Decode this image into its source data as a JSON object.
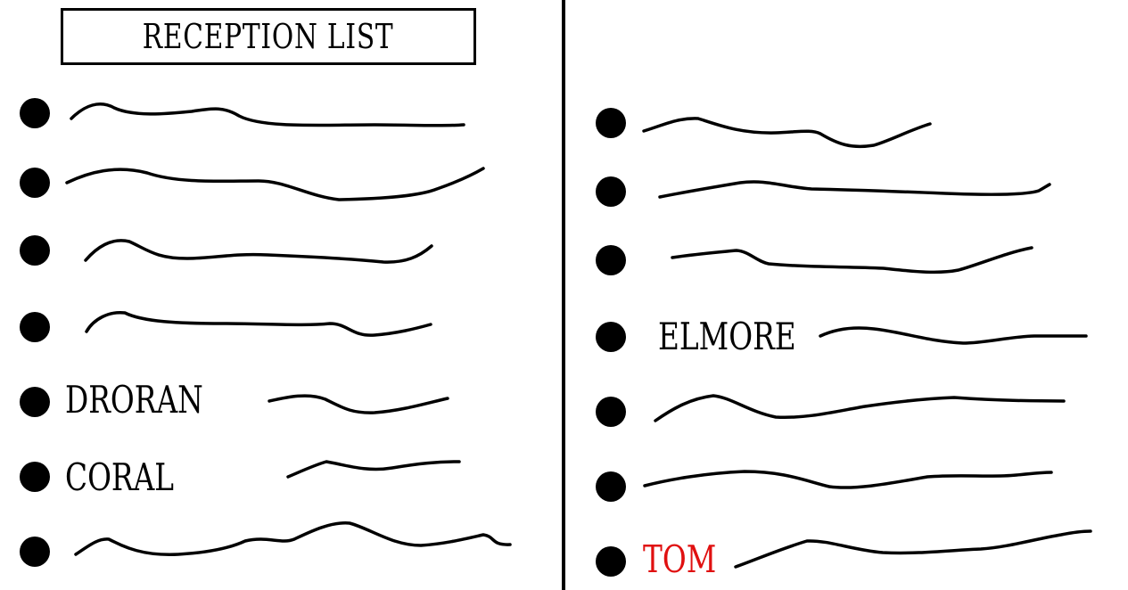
{
  "title": "RECEPTION LIST",
  "names": {
    "droran": "DRORAN",
    "coral": "CORAL",
    "elmore": "ELMORE",
    "tom": "TOM"
  },
  "colors": {
    "ink": "#000000",
    "highlight": "#e01010"
  }
}
